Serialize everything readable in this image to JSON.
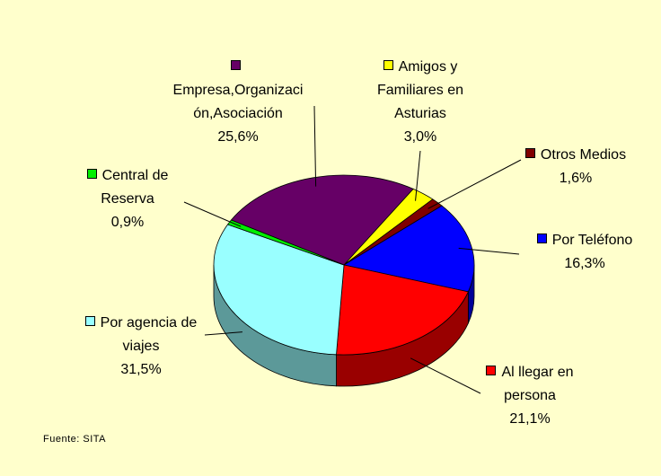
{
  "chart_data": {
    "type": "pie3d",
    "categories": [
      "Empresa,Organización,Asociación",
      "Amigos y Familiares en Asturias",
      "Otros Medios",
      "Por Teléfono",
      "Al llegar en persona",
      "Por agencia de viajes",
      "Central de Reserva"
    ],
    "values": [
      25.6,
      3.0,
      1.6,
      16.3,
      21.1,
      31.5,
      0.9
    ],
    "value_labels": [
      "25,6%",
      "3,0%",
      "1,6%",
      "16,3%",
      "21,1%",
      "31,5%",
      "0,9%"
    ],
    "colors": [
      "#660066",
      "#ffff00",
      "#800000",
      "#0000ff",
      "#ff0000",
      "#99ffff",
      "#00ee00"
    ],
    "source": "Fuente: SITA"
  }
}
